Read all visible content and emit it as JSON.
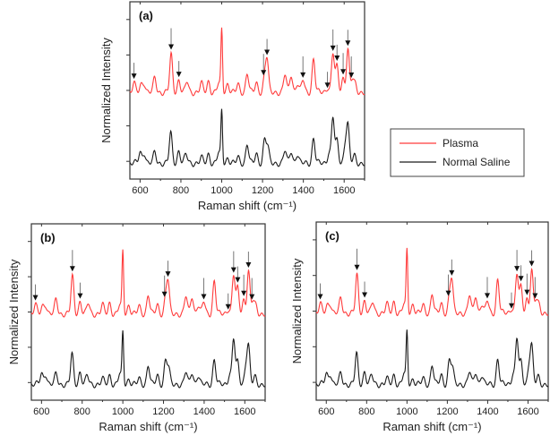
{
  "colors": {
    "plasma": "#ff3b3b",
    "saline": "#1a1a1a",
    "arrow": "#111111",
    "axis": "#333333"
  },
  "legend": {
    "placement": "right-middle",
    "entries": [
      {
        "label": "Plasma",
        "series": "plasma"
      },
      {
        "label": "Normal Saline",
        "series": "saline"
      }
    ]
  },
  "chart_data": [
    {
      "panel": "(a)",
      "type": "line",
      "xlabel": "Raman shift (cm⁻¹)",
      "ylabel": "Normalized Intensity",
      "xlim": [
        550,
        1700
      ],
      "xticks": [
        600,
        800,
        1000,
        1200,
        1400,
        1600
      ],
      "yticks_labeled": false,
      "grid": false,
      "arrows_at": [
        570,
        752,
        790,
        1205,
        1222,
        1398,
        1518,
        1545,
        1565,
        1595,
        1618,
        1635
      ]
    },
    {
      "panel": "(b)",
      "type": "line",
      "xlabel": "Raman shift (cm⁻¹)",
      "ylabel": "Normalized Intensity",
      "xlim": [
        550,
        1700
      ],
      "xticks": [
        600,
        800,
        1000,
        1200,
        1400,
        1600
      ],
      "yticks_labeled": false,
      "grid": false,
      "arrows_at": [
        570,
        752,
        790,
        1205,
        1222,
        1398,
        1518,
        1545,
        1565,
        1595,
        1618,
        1635
      ]
    },
    {
      "panel": "(c)",
      "type": "line",
      "xlabel": "Raman shift (cm⁻¹)",
      "ylabel": "Normalized Intensity",
      "xlim": [
        550,
        1700
      ],
      "xticks": [
        600,
        800,
        1000,
        1200,
        1400,
        1600
      ],
      "yticks_labeled": false,
      "grid": false,
      "arrows_at": [
        570,
        752,
        790,
        1205,
        1222,
        1398,
        1518,
        1545,
        1565,
        1595,
        1618,
        1635
      ]
    }
  ],
  "spectra": {
    "plasma": {
      "name": "Plasma",
      "baseline": 2.45,
      "peaks": [
        [
          570,
          0.25
        ],
        [
          605,
          0.2
        ],
        [
          620,
          0.25
        ],
        [
          672,
          0.4
        ],
        [
          752,
          1.05
        ],
        [
          790,
          0.35
        ],
        [
          830,
          0.3
        ],
        [
          900,
          0.25
        ],
        [
          935,
          0.3
        ],
        [
          985,
          0.25
        ],
        [
          1000,
          1.75
        ],
        [
          1030,
          0.25
        ],
        [
          1080,
          0.2
        ],
        [
          1125,
          0.55
        ],
        [
          1170,
          0.25
        ],
        [
          1210,
          0.4
        ],
        [
          1222,
          0.9
        ],
        [
          1310,
          0.5
        ],
        [
          1340,
          0.5
        ],
        [
          1370,
          0.25
        ],
        [
          1398,
          0.35
        ],
        [
          1450,
          0.95
        ],
        [
          1520,
          0.15
        ],
        [
          1545,
          1.1
        ],
        [
          1565,
          0.7
        ],
        [
          1595,
          0.4
        ],
        [
          1618,
          1.2
        ],
        [
          1640,
          0.35
        ],
        [
          1655,
          0.2
        ]
      ]
    },
    "saline": {
      "name": "Normal Saline",
      "baseline": 0.45,
      "peaks": [
        [
          600,
          0.3
        ],
        [
          620,
          0.3
        ],
        [
          672,
          0.3
        ],
        [
          750,
          0.85
        ],
        [
          790,
          0.35
        ],
        [
          825,
          0.25
        ],
        [
          900,
          0.15
        ],
        [
          935,
          0.25
        ],
        [
          985,
          0.3
        ],
        [
          1000,
          1.45
        ],
        [
          1030,
          0.15
        ],
        [
          1080,
          0.15
        ],
        [
          1125,
          0.55
        ],
        [
          1170,
          0.25
        ],
        [
          1210,
          0.65
        ],
        [
          1225,
          0.45
        ],
        [
          1310,
          0.35
        ],
        [
          1340,
          0.35
        ],
        [
          1370,
          0.25
        ],
        [
          1450,
          0.7
        ],
        [
          1525,
          0.3
        ],
        [
          1545,
          1.3
        ],
        [
          1565,
          0.6
        ],
        [
          1605,
          0.5
        ],
        [
          1618,
          1.05
        ],
        [
          1650,
          0.2
        ]
      ]
    }
  }
}
